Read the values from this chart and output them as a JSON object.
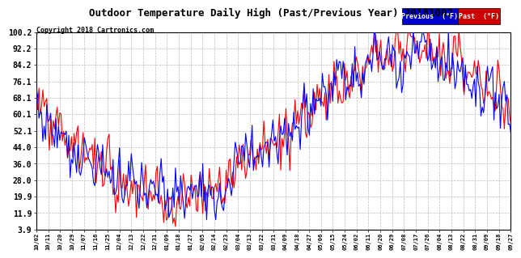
{
  "title": "Outdoor Temperature Daily High (Past/Previous Year) 20181002",
  "copyright": "Copyright 2018 Cartronics.com",
  "ylabel_values": [
    3.9,
    11.9,
    19.9,
    28.0,
    36.0,
    44.0,
    52.1,
    60.1,
    68.1,
    76.1,
    84.2,
    92.2,
    100.2
  ],
  "ymin": 3.9,
  "ymax": 100.2,
  "x_tick_labels": [
    "10/02",
    "10/11",
    "10/20",
    "10/29",
    "11/07",
    "11/16",
    "11/25",
    "12/04",
    "12/13",
    "12/22",
    "12/31",
    "01/09",
    "01/18",
    "01/27",
    "02/05",
    "02/14",
    "02/23",
    "03/04",
    "03/13",
    "03/22",
    "03/31",
    "04/09",
    "04/18",
    "04/27",
    "05/06",
    "05/15",
    "05/24",
    "06/02",
    "06/11",
    "06/20",
    "06/29",
    "07/08",
    "07/17",
    "07/26",
    "08/04",
    "08/13",
    "08/22",
    "08/31",
    "09/09",
    "09/18",
    "09/27"
  ],
  "bg_color": "#ffffff",
  "grid_color": "#bbbbbb",
  "line_color_previous": "#0000ff",
  "line_color_past": "#ff0000",
  "legend_prev_bg": "#0000cc",
  "legend_past_bg": "#cc0000",
  "title_fontsize": 9,
  "copyright_fontsize": 6,
  "ytick_fontsize": 7,
  "xtick_fontsize": 5,
  "line_width": 0.8
}
